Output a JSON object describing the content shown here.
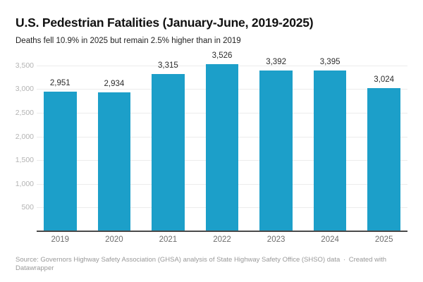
{
  "header": {
    "title": "U.S. Pedestrian Fatalities (January-June, 2019-2025)",
    "subtitle": "Deaths fell 10.9% in 2025 but remain 2.5% higher than in 2019"
  },
  "chart_data": {
    "type": "bar",
    "title": "U.S. Pedestrian Fatalities (January-June, 2019-2025)",
    "subtitle": "Deaths fell 10.9% in 2025 but remain 2.5% higher than in 2019",
    "categories": [
      "2019",
      "2020",
      "2021",
      "2022",
      "2023",
      "2024",
      "2025"
    ],
    "values": [
      2951,
      2934,
      3315,
      3526,
      3392,
      3395,
      3024
    ],
    "value_labels": [
      "2,951",
      "2,934",
      "3,315",
      "3,526",
      "3,392",
      "3,395",
      "3,024"
    ],
    "yticks": [
      500,
      1000,
      1500,
      2000,
      2500,
      3000,
      3500
    ],
    "ytick_labels": [
      "500",
      "1,000",
      "1,500",
      "2,000",
      "2,500",
      "3,000",
      "3,500"
    ],
    "ylim": [
      0,
      3571
    ],
    "xlabel": "",
    "ylabel": "",
    "grid": true,
    "legend_position": "none",
    "bar_color": "#1C9FC9"
  },
  "footer": {
    "source": "Source: Governors Highway Safety Association (GHSA) analysis of State Highway Safety Office (SHSO) data",
    "separator": "·",
    "attribution": "Created with Datawrapper"
  },
  "colors": {
    "bar": "#1C9FC9",
    "gridline": "#ececec",
    "baseline": "#4a4a4a",
    "y_tick_text": "#b3b3b3",
    "x_tick_text": "#6e6e6e",
    "value_label_text": "#2b2b2b",
    "title_text": "#111111",
    "subtitle_text": "#222222",
    "footer_text": "#999999",
    "background": "#ffffff"
  }
}
